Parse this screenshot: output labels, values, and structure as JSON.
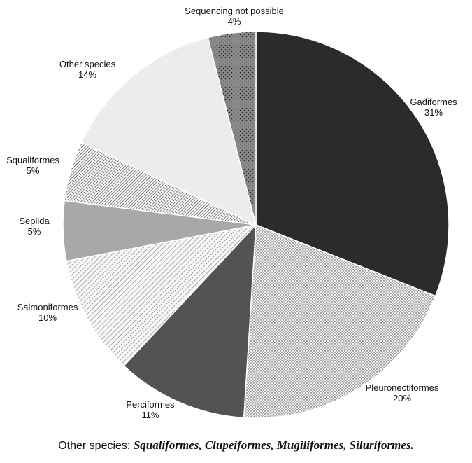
{
  "chart_data": {
    "type": "pie",
    "slices": [
      {
        "label": "Gadiformes",
        "value": 31,
        "value_label": "31%",
        "fill": "#2b2b2b",
        "pattern": "solid"
      },
      {
        "label": "Pleuronectiformes",
        "value": 20,
        "value_label": "20%",
        "fill": "#ececec",
        "pattern": "dots"
      },
      {
        "label": "Perciformes",
        "value": 11,
        "value_label": "11%",
        "fill": "#535353",
        "pattern": "solid"
      },
      {
        "label": "Salmoniformes",
        "value": 10,
        "value_label": "10%",
        "fill": "#f3f3f3",
        "pattern": "diagonal-lines"
      },
      {
        "label": "Sepiida",
        "value": 5,
        "value_label": "5%",
        "fill": "#a8a8a8",
        "pattern": "solid"
      },
      {
        "label": "Squaliformes",
        "value": 5,
        "value_label": "5%",
        "fill": "#f0f0f0",
        "pattern": "dense-diagonal-lines"
      },
      {
        "label": "Other species",
        "value": 14,
        "value_label": "14%",
        "fill": "#ececec",
        "pattern": "solid"
      },
      {
        "label": "Sequencing not possible",
        "value": 4,
        "value_label": "4%",
        "fill": "#8a8a8a",
        "pattern": "dots"
      }
    ],
    "start": "12 o'clock",
    "direction": "clockwise"
  },
  "footnote": {
    "prefix": "Other species: ",
    "list": "Squaliformes, Clupeiformes, Mugiliformes, Siluriformes."
  }
}
